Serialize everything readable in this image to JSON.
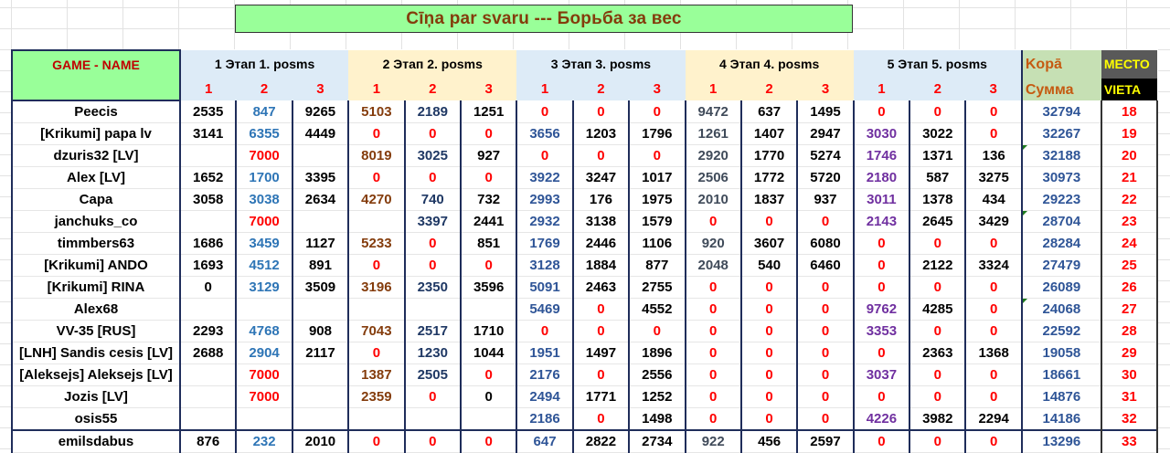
{
  "title": "Cīņa par svaru  ---   Борьба за  вес",
  "header": {
    "name_col": "GAME - NAME",
    "stages": [
      {
        "label": "1 Этап   1. posms",
        "subs": [
          "1",
          "2",
          "3"
        ],
        "bg": "blue"
      },
      {
        "label": "2 Этап   2. posms",
        "subs": [
          "1",
          "2",
          "3"
        ],
        "bg": "tan"
      },
      {
        "label": "3 Этап   3. posms",
        "subs": [
          "1",
          "2",
          "3"
        ],
        "bg": "blue"
      },
      {
        "label": "4 Этап   4. posms",
        "subs": [
          "1",
          "2",
          "3"
        ],
        "bg": "tan"
      },
      {
        "label": "5 Этап   5. posms",
        "subs": [
          "1",
          "2",
          "3"
        ],
        "bg": "blue"
      }
    ],
    "sum_top": "Kopā",
    "sum_bottom": "Сумма",
    "rank_top": "МЕСТО",
    "rank_bottom": "VIETA"
  },
  "colors": {
    "title_bg": "#99ff99",
    "title_text": "#843c0c",
    "header_blue": "#ddebf7",
    "header_tan": "#fff2cc",
    "sum_bg": "#c6e0b4",
    "rank_text": "#ff0000",
    "zero_text": "#ff0000"
  },
  "rows": [
    {
      "name": "Peecis",
      "v": [
        "2535",
        "847",
        "9265",
        "5103",
        "2189",
        "1251",
        "0",
        "0",
        "0",
        "9472",
        "637",
        "1495",
        "0",
        "0",
        "0"
      ],
      "sum": "32794",
      "rank": "18"
    },
    {
      "name": "[Krikumi] papa lv",
      "v": [
        "3141",
        "6355",
        "4449",
        "0",
        "0",
        "0",
        "3656",
        "1203",
        "1796",
        "1261",
        "1407",
        "2947",
        "3030",
        "3022",
        "0"
      ],
      "sum": "32267",
      "rank": "19"
    },
    {
      "name": "dzuris32 [LV]",
      "v": [
        "",
        "7000",
        "",
        "8019",
        "3025",
        "927",
        "0",
        "0",
        "0",
        "2920",
        "1770",
        "5274",
        "1746",
        "1371",
        "136"
      ],
      "sum": "32188",
      "rank": "20"
    },
    {
      "name": "Alex [LV]",
      "v": [
        "1652",
        "1700",
        "3395",
        "0",
        "0",
        "0",
        "3922",
        "3247",
        "1017",
        "2506",
        "1772",
        "5720",
        "2180",
        "587",
        "3275"
      ],
      "sum": "30973",
      "rank": "21"
    },
    {
      "name": "Capa",
      "v": [
        "3058",
        "3038",
        "2634",
        "4270",
        "740",
        "732",
        "2993",
        "176",
        "1975",
        "2010",
        "1837",
        "937",
        "3011",
        "1378",
        "434"
      ],
      "sum": "29223",
      "rank": "22"
    },
    {
      "name": "janchuks_co",
      "v": [
        "",
        "7000",
        "",
        "",
        "3397",
        "2441",
        "2932",
        "3138",
        "1579",
        "0",
        "0",
        "0",
        "2143",
        "2645",
        "3429"
      ],
      "sum": "28704",
      "rank": "23"
    },
    {
      "name": "timmbers63",
      "v": [
        "1686",
        "3459",
        "1127",
        "5233",
        "0",
        "851",
        "1769",
        "2446",
        "1106",
        "920",
        "3607",
        "6080",
        "0",
        "0",
        "0"
      ],
      "sum": "28284",
      "rank": "24"
    },
    {
      "name": "[Krikumi] ANDO",
      "v": [
        "1693",
        "4512",
        "891",
        "0",
        "0",
        "0",
        "3128",
        "1884",
        "877",
        "2048",
        "540",
        "6460",
        "0",
        "2122",
        "3324"
      ],
      "sum": "27479",
      "rank": "25"
    },
    {
      "name": "[Krikumi] RINA",
      "v": [
        "0",
        "3129",
        "3509",
        "3196",
        "2350",
        "3596",
        "5091",
        "2463",
        "2755",
        "0",
        "0",
        "0",
        "0",
        "0",
        "0"
      ],
      "sum": "26089",
      "rank": "26"
    },
    {
      "name": "Alex68",
      "v": [
        "",
        "",
        "",
        "",
        "",
        "",
        "5469",
        "0",
        "4552",
        "0",
        "0",
        "0",
        "9762",
        "4285",
        "0"
      ],
      "sum": "24068",
      "rank": "27"
    },
    {
      "name": "VV-35 [RUS]",
      "v": [
        "2293",
        "4768",
        "908",
        "7043",
        "2517",
        "1710",
        "0",
        "0",
        "0",
        "0",
        "0",
        "0",
        "3353",
        "0",
        "0"
      ],
      "sum": "22592",
      "rank": "28"
    },
    {
      "name": "[LNH] Sandis cesis [LV]",
      "v": [
        "2688",
        "2904",
        "2117",
        "0",
        "1230",
        "1044",
        "1951",
        "1497",
        "1896",
        "0",
        "0",
        "0",
        "0",
        "2363",
        "1368"
      ],
      "sum": "19058",
      "rank": "29"
    },
    {
      "name": "[Aleksejs] Aleksejs [LV]",
      "v": [
        "",
        "7000",
        "",
        "1387",
        "2505",
        "0",
        "2176",
        "0",
        "2556",
        "0",
        "0",
        "0",
        "3037",
        "0",
        "0"
      ],
      "sum": "18661",
      "rank": "30"
    },
    {
      "name": "Jozis [LV]",
      "v": [
        "",
        "7000",
        "",
        "2359",
        "0",
        "0",
        "2494",
        "1771",
        "1252",
        "0",
        "0",
        "0",
        "0",
        "0",
        "0"
      ],
      "sum": "14876",
      "rank": "31"
    },
    {
      "name": "osis55",
      "v": [
        "",
        "",
        "",
        "",
        "",
        "",
        "2186",
        "0",
        "1498",
        "0",
        "0",
        "0",
        "4226",
        "3982",
        "2294"
      ],
      "sum": "14186",
      "rank": "32"
    },
    {
      "name": "emilsdabus",
      "v": [
        "876",
        "232",
        "2010",
        "0",
        "0",
        "0",
        "647",
        "2822",
        "2734",
        "922",
        "456",
        "2597",
        "0",
        "0",
        "0"
      ],
      "sum": "13296",
      "rank": "33"
    }
  ]
}
